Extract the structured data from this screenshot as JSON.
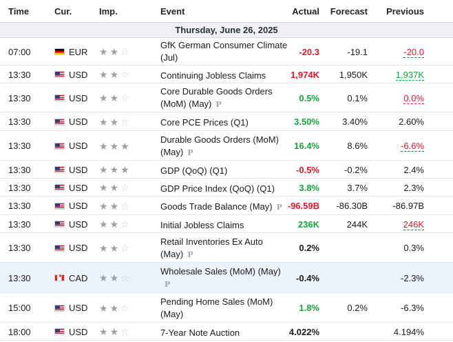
{
  "header": {
    "time": "Time",
    "currency": "Cur.",
    "importance": "Imp.",
    "event": "Event",
    "actual": "Actual",
    "forecast": "Forecast",
    "previous": "Previous"
  },
  "date_label": "Thursday, June 26, 2025",
  "colors": {
    "negative": "#e0162b",
    "positive": "#13a43c"
  },
  "rows": [
    {
      "time": "07:00",
      "flag": "germany-flag",
      "currency": "EUR",
      "importance": 2,
      "event": "GfK German Consumer Climate (Jul)",
      "preliminary": false,
      "actual": "-20.3",
      "actual_color": "red",
      "forecast": "-19.1",
      "previous": "-20.0",
      "previous_style": "revised-down"
    },
    {
      "time": "13:30",
      "flag": "us-flag",
      "currency": "USD",
      "importance": 2,
      "event": "Continuing Jobless Claims",
      "preliminary": false,
      "actual": "1,974K",
      "actual_color": "red",
      "forecast": "1,950K",
      "previous": "1,937K",
      "previous_style": "revised-up"
    },
    {
      "time": "13:30",
      "flag": "us-flag",
      "currency": "USD",
      "importance": 2,
      "event": "Core Durable Goods Orders (MoM) (May)",
      "preliminary": true,
      "actual": "0.5%",
      "actual_color": "green",
      "forecast": "0.1%",
      "previous": "0.0%",
      "previous_style": "revised-down"
    },
    {
      "time": "13:30",
      "flag": "us-flag",
      "currency": "USD",
      "importance": 2,
      "event": "Core PCE Prices (Q1)",
      "preliminary": false,
      "actual": "3.50%",
      "actual_color": "green",
      "forecast": "3.40%",
      "previous": "2.60%",
      "previous_style": "plain"
    },
    {
      "time": "13:30",
      "flag": "us-flag",
      "currency": "USD",
      "importance": 3,
      "event": "Durable Goods Orders (MoM) (May)",
      "preliminary": true,
      "actual": "16.4%",
      "actual_color": "green",
      "forecast": "8.6%",
      "previous": "-6.6%",
      "previous_style": "revised-down"
    },
    {
      "time": "13:30",
      "flag": "us-flag",
      "currency": "USD",
      "importance": 3,
      "event": "GDP (QoQ) (Q1)",
      "preliminary": false,
      "actual": "-0.5%",
      "actual_color": "red",
      "forecast": "-0.2%",
      "previous": "2.4%",
      "previous_style": "plain"
    },
    {
      "time": "13:30",
      "flag": "us-flag",
      "currency": "USD",
      "importance": 2,
      "event": "GDP Price Index (QoQ) (Q1)",
      "preliminary": false,
      "actual": "3.8%",
      "actual_color": "green",
      "forecast": "3.7%",
      "previous": "2.3%",
      "previous_style": "plain"
    },
    {
      "time": "13:30",
      "flag": "us-flag",
      "currency": "USD",
      "importance": 2,
      "event": "Goods Trade Balance (May)",
      "preliminary": true,
      "actual": "-96.59B",
      "actual_color": "red",
      "forecast": "-86.30B",
      "previous": "-86.97B",
      "previous_style": "plain"
    },
    {
      "time": "13:30",
      "flag": "us-flag",
      "currency": "USD",
      "importance": 2,
      "event": "Initial Jobless Claims",
      "preliminary": false,
      "actual": "236K",
      "actual_color": "green",
      "forecast": "244K",
      "previous": "246K",
      "previous_style": "revised-down"
    },
    {
      "time": "13:30",
      "flag": "us-flag",
      "currency": "USD",
      "importance": 2,
      "event": "Retail Inventories Ex Auto (May)",
      "preliminary": true,
      "actual": "0.2%",
      "actual_color": "black",
      "forecast": "",
      "previous": "0.3%",
      "previous_style": "plain"
    },
    {
      "time": "13:30",
      "flag": "canada-flag",
      "currency": "CAD",
      "importance": 2,
      "event": "Wholesale Sales (MoM) (May)",
      "preliminary": true,
      "actual": "-0.4%",
      "actual_color": "black",
      "forecast": "",
      "previous": "-2.3%",
      "previous_style": "plain",
      "highlighted": true
    },
    {
      "time": "15:00",
      "flag": "us-flag",
      "currency": "USD",
      "importance": 2,
      "event": "Pending Home Sales (MoM) (May)",
      "preliminary": false,
      "actual": "1.8%",
      "actual_color": "green",
      "forecast": "0.2%",
      "previous": "-6.3%",
      "previous_style": "plain"
    },
    {
      "time": "18:00",
      "flag": "us-flag",
      "currency": "USD",
      "importance": 2,
      "event": "7-Year Note Auction",
      "preliminary": false,
      "actual": "4.022%",
      "actual_color": "black",
      "forecast": "",
      "previous": "4.194%",
      "previous_style": "plain"
    }
  ]
}
